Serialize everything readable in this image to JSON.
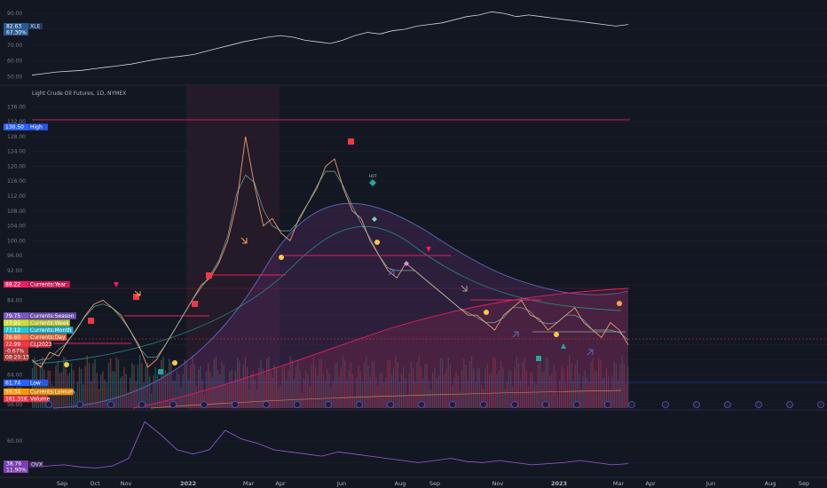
{
  "colors": {
    "background": "#131722",
    "grid": "#1e2230",
    "text": "#787b86",
    "up": "#26a69a",
    "down": "#ef5350",
    "xle_line": "#d1d4dc",
    "dvx_line": "#9c5bd6"
  },
  "top_pane": {
    "symbol_tag": "XLE",
    "price_tag": "82.63",
    "pct_tag": "67.30%",
    "y_ticks": [
      "90.00",
      "80.00",
      "70.00",
      "60.00",
      "50.00"
    ],
    "y_tick_values": [
      90,
      80,
      70,
      60,
      50
    ]
  },
  "main_pane": {
    "title": "Light Crude Oil Futures, 1D, NYMEX",
    "y_ticks": [
      "136.00",
      "132.00",
      "128.00",
      "124.00",
      "120.00",
      "116.00",
      "112.00",
      "108.00",
      "104.00",
      "100.00",
      "96.00",
      "92.00",
      "88.00",
      "84.00",
      "80.00",
      "76.00",
      "72.00",
      "68.00",
      "64.00",
      "60.00",
      "56.00"
    ],
    "y_tick_values": [
      136,
      132,
      128,
      124,
      120,
      116,
      112,
      108,
      104,
      100,
      96,
      92,
      88,
      84,
      80,
      76,
      72,
      68,
      64,
      60,
      56
    ],
    "labels": [
      {
        "value": "130.50",
        "text": "High",
        "color": "#2962ff",
        "at": 130.5
      },
      {
        "value": "88.22",
        "text": "Currents:Year",
        "color": "#e91e63",
        "at": 88.22
      },
      {
        "value": "79.75",
        "text": "Currents:Season",
        "color": "#7e57c2",
        "at": 79.75
      },
      {
        "value": "77.91",
        "text": "Currents:Week",
        "color": "#cddc39",
        "at": 77.91
      },
      {
        "value": "77.12",
        "text": "Currents:Month",
        "color": "#26c6da",
        "at": 77.12
      },
      {
        "value": "76.60",
        "text": "Currents:Day",
        "color": "#ff7043",
        "at": 76.6
      },
      {
        "value": "72.99",
        "text": "CLJ2023",
        "color": "#f23645",
        "at": 72.99
      },
      {
        "value": "61.74",
        "text": "Low",
        "color": "#2962ff",
        "at": 61.74
      },
      {
        "value": "59.34",
        "text": "Currents:Lomum",
        "color": "#ff9800",
        "at": 59.34
      },
      {
        "value": "161.31K",
        "text": "Volume",
        "color": "#f23645",
        "at": 57.8
      }
    ],
    "price_sub": [
      "-0.67%",
      "08:20:13"
    ],
    "diamond_label": "HOT"
  },
  "bottom_pane": {
    "symbol_tag": "OVX",
    "price_tag": "38.76",
    "pct_tag": "11.90%",
    "y_ticks": [
      "60.00",
      "40.00"
    ],
    "y_tick_values": [
      60,
      40
    ]
  },
  "x_axis": {
    "months": [
      "Sep",
      "Oct",
      "Nov",
      "2022",
      "Mar",
      "Apr",
      "Jun",
      "Aug",
      "Sep",
      "Nov",
      "2023",
      "Mar",
      "Apr",
      "Jun",
      "Aug",
      "Sep"
    ]
  },
  "chart_data": {
    "type": "line",
    "series": [
      {
        "name": "XLE",
        "values": [
          51,
          52,
          53,
          53.5,
          54,
          55,
          56,
          57,
          58,
          59.5,
          61,
          62,
          63,
          64,
          66,
          68,
          70,
          72,
          73.5,
          75,
          76,
          75,
          73,
          72,
          71,
          73,
          76,
          78,
          77,
          79,
          80,
          82,
          83,
          84,
          86,
          88,
          89,
          91,
          90,
          88,
          89,
          88,
          87,
          86,
          85,
          84,
          83,
          82,
          83
        ]
      },
      {
        "name": "CLJ2023",
        "values": [
          68,
          66,
          70,
          69,
          73,
          76,
          80,
          83,
          84,
          82,
          80,
          76,
          72,
          66,
          68,
          72,
          76,
          80,
          84,
          88,
          90,
          94,
          100,
          110,
          128,
          115,
          104,
          106,
          102,
          100,
          106,
          110,
          114,
          120,
          122,
          114,
          108,
          106,
          100,
          96,
          92,
          90,
          94,
          92,
          90,
          88,
          86,
          84,
          82,
          80,
          80,
          78,
          76,
          80,
          82,
          84,
          80,
          79,
          76,
          78,
          80,
          82,
          78,
          76,
          74,
          78,
          76,
          72
        ]
      },
      {
        "name": "OVX",
        "values": [
          36,
          37,
          38,
          36,
          35,
          37,
          44,
          78,
          66,
          52,
          48,
          52,
          70,
          62,
          58,
          52,
          50,
          48,
          46,
          50,
          48,
          46,
          44,
          42,
          40,
          42,
          44,
          41,
          40,
          42,
          40,
          38,
          39,
          40,
          42,
          40,
          38,
          39
        ]
      }
    ]
  }
}
